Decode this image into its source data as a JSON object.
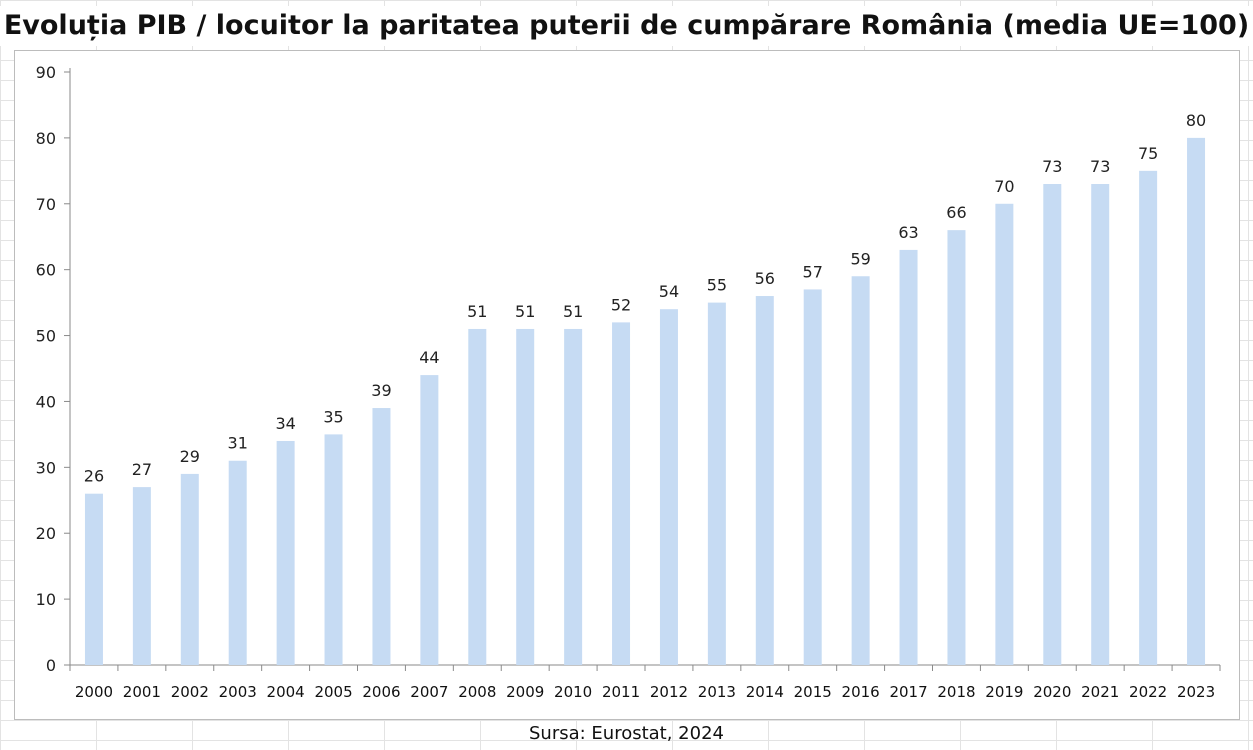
{
  "title": "Evoluția PIB / locuitor la paritatea puterii de cumpărare România (media UE=100)",
  "source": "Sursa: Eurostat, 2024",
  "chart_data": {
    "type": "bar",
    "title": "Evoluția PIB / locuitor la paritatea puterii de cumpărare România (media UE=100)",
    "xlabel": "",
    "ylabel": "",
    "categories": [
      "2000",
      "2001",
      "2002",
      "2003",
      "2004",
      "2005",
      "2006",
      "2007",
      "2008",
      "2009",
      "2010",
      "2011",
      "2012",
      "2013",
      "2014",
      "2015",
      "2016",
      "2017",
      "2018",
      "2019",
      "2020",
      "2021",
      "2022",
      "2023"
    ],
    "values": [
      26,
      27,
      29,
      31,
      34,
      35,
      39,
      44,
      51,
      51,
      51,
      52,
      54,
      55,
      56,
      57,
      59,
      63,
      66,
      70,
      73,
      73,
      75,
      80
    ],
    "ylim": [
      0,
      90
    ],
    "yticks": [
      0,
      10,
      20,
      30,
      40,
      50,
      60,
      70,
      80,
      90
    ],
    "grid": false,
    "data_labels": true,
    "bar_color": "#c6dbf3",
    "axis_color": "#8a8a8a"
  }
}
